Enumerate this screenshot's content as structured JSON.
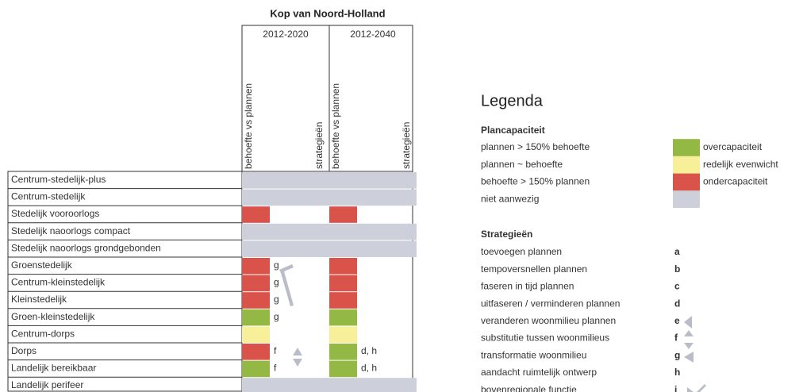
{
  "title": "Kop van Noord-Holland",
  "periods": [
    {
      "label": "2012-2020",
      "columns": [
        "behoefte vs plannen",
        "strategieën"
      ]
    },
    {
      "label": "2012-2040",
      "columns": [
        "behoefte vs plannen",
        "strategieën"
      ]
    }
  ],
  "rows": [
    {
      "label": "Centrum-stedelijk-plus",
      "cells": [
        {
          "color": "#cdd0da",
          "strategy": null
        },
        {
          "color": "#cdd0da",
          "strategy": null
        }
      ],
      "full": true
    },
    {
      "label": "Centrum-stedelijk",
      "cells": [
        {
          "color": "#cdd0da",
          "strategy": null
        },
        {
          "color": "#cdd0da",
          "strategy": null
        }
      ],
      "full": true
    },
    {
      "label": "Stedelijk vooroorlogs",
      "cells": [
        {
          "color": "#d9534a",
          "strategy": null
        },
        {
          "color": "#d9534a",
          "strategy": null
        }
      ]
    },
    {
      "label": "Stedelijk naoorlogs compact",
      "cells": [
        {
          "color": "#cdd0da",
          "strategy": null
        },
        {
          "color": "#cdd0da",
          "strategy": null
        }
      ],
      "full": true
    },
    {
      "label": "Stedelijk naoorlogs grondgebonden",
      "cells": [
        {
          "color": "#cdd0da",
          "strategy": null
        },
        {
          "color": "#cdd0da",
          "strategy": null
        }
      ],
      "full": true
    },
    {
      "label": "Groenstedelijk",
      "cells": [
        {
          "color": "#d9534a",
          "strategy": "g"
        },
        {
          "color": "#d9534a",
          "strategy": null
        }
      ]
    },
    {
      "label": "Centrum-kleinstedelijk",
      "cells": [
        {
          "color": "#d9534a",
          "strategy": "g"
        },
        {
          "color": "#d9534a",
          "strategy": null
        }
      ]
    },
    {
      "label": "Kleinstedelijk",
      "cells": [
        {
          "color": "#d9534a",
          "strategy": "g"
        },
        {
          "color": "#d9534a",
          "strategy": null
        }
      ]
    },
    {
      "label": "Groen-kleinstedelijk",
      "cells": [
        {
          "color": "#93b843",
          "strategy": "g"
        },
        {
          "color": "#93b843",
          "strategy": null
        }
      ]
    },
    {
      "label": "Centrum-dorps",
      "cells": [
        {
          "color": "#f8ef9a",
          "strategy": null
        },
        {
          "color": "#f8ef9a",
          "strategy": null
        }
      ]
    },
    {
      "label": "Dorps",
      "cells": [
        {
          "color": "#d9534a",
          "strategy": "f"
        },
        {
          "color": "#93b843",
          "strategy": "d, h"
        }
      ]
    },
    {
      "label": "Landelijk bereikbaar",
      "cells": [
        {
          "color": "#93b843",
          "strategy": "f"
        },
        {
          "color": "#93b843",
          "strategy": "d, h"
        }
      ]
    },
    {
      "label": "Landelijk perifeer",
      "cells": [
        {
          "color": "#cdd0da",
          "strategy": null
        },
        {
          "color": "#cdd0da",
          "strategy": null
        }
      ],
      "full": true
    }
  ],
  "legend": {
    "title": "Legenda",
    "plancapaciteit": {
      "title": "Plancapaciteit",
      "items": [
        {
          "label": "plannen > 150% behoefte",
          "color": "#93b843",
          "description": "overcapaciteit"
        },
        {
          "label": "plannen ~ behoefte",
          "color": "#f8ef9a",
          "description": "redelijk evenwicht"
        },
        {
          "label": "behoefte > 150% plannen",
          "color": "#d9534a",
          "description": "ondercapaciteit"
        },
        {
          "label": "niet aanwezig",
          "color": "#cdd0da",
          "description": null
        }
      ]
    },
    "strategieen": {
      "title": "Strategieën",
      "items": [
        {
          "label": "toevoegen plannen",
          "letter": "a"
        },
        {
          "label": "tempoversnellen plannen",
          "letter": "b"
        },
        {
          "label": "faseren in tijd plannen",
          "letter": "c"
        },
        {
          "label": "uitfaseren / verminderen plannen",
          "letter": "d"
        },
        {
          "label": "veranderen woonmilieu plannen",
          "letter": "e"
        },
        {
          "label": "substitutie tussen woonmilieus",
          "letter": "f"
        },
        {
          "label": "transformatie woonmilieu",
          "letter": "g"
        },
        {
          "label": "aandacht ruimtelijk ontwerp",
          "letter": "h"
        },
        {
          "label": "bovenregionale functie",
          "letter": "i"
        }
      ]
    }
  }
}
